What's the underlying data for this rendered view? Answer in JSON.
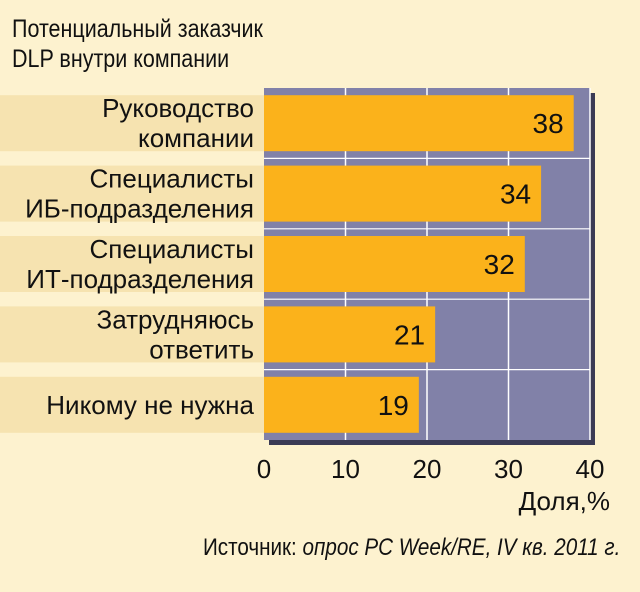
{
  "chart_data": {
    "type": "bar",
    "orientation": "horizontal",
    "title_lines": [
      "Потенциальный заказчик",
      "DLP внутри компании"
    ],
    "categories": [
      [
        "Руководство",
        "компании"
      ],
      [
        "Специалисты",
        "ИБ-подразделения"
      ],
      [
        "Специалисты",
        "ИТ-подразделения"
      ],
      [
        "Затрудняюсь",
        "ответить"
      ],
      [
        "Никому не нужна"
      ]
    ],
    "values": [
      38,
      34,
      32,
      21,
      19
    ],
    "data_labels": [
      "38",
      "34",
      "32",
      "21",
      "19"
    ],
    "xlim": [
      0,
      40
    ],
    "xticks": [
      "0",
      "10",
      "20",
      "30",
      "40"
    ],
    "xlabel": "Доля,%",
    "grid": true,
    "colors": {
      "bar": "#fbb21b",
      "plot_background": "#8181a8",
      "row_band": "#f6e3b0",
      "grid": "#ffffff",
      "page_background": "#fdf2cf"
    }
  },
  "source": {
    "prefix": "Источник: ",
    "text": "опрос PC Week/RE, IV кв. 2011 г."
  }
}
